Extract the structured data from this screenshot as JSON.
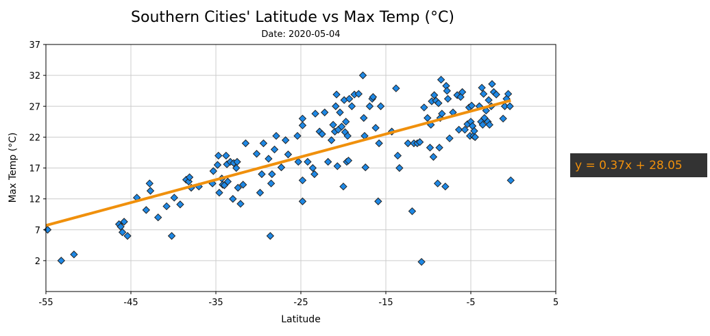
{
  "chart_data": {
    "type": "scatter",
    "title": "Southern Cities' Latitude vs Max Temp (°C)",
    "subtitle": "Date: 2020-05-04",
    "xlabel": "Latitude",
    "ylabel": "Max Temp (°C)",
    "xlim": [
      -55,
      5
    ],
    "ylim": [
      -3,
      37
    ],
    "xticks": [
      -55,
      -45,
      -35,
      -25,
      -15,
      -5,
      5
    ],
    "yticks": [
      2,
      7,
      12,
      17,
      22,
      27,
      32,
      37
    ],
    "grid": true,
    "marker": "diamond",
    "marker_color": "#1e88e5",
    "marker_edge_color": "#222222",
    "regression": {
      "slope": 0.37,
      "intercept": 28.05,
      "x_range": [
        -55,
        -0.3
      ],
      "color": "#f0900c",
      "label": "y = 0.37x + 28.05",
      "label_text_color": "#f0900c",
      "label_background": "#333333"
    },
    "points": [
      [
        -54.8,
        7.0
      ],
      [
        -53.2,
        2.0
      ],
      [
        -51.7,
        3.0
      ],
      [
        -46.4,
        7.9
      ],
      [
        -46.2,
        7.5
      ],
      [
        -46.0,
        6.6
      ],
      [
        -45.8,
        8.3
      ],
      [
        -45.4,
        6.0
      ],
      [
        -44.3,
        12.2
      ],
      [
        -43.2,
        10.2
      ],
      [
        -42.8,
        14.5
      ],
      [
        -42.7,
        13.3
      ],
      [
        -41.8,
        9.0
      ],
      [
        -40.8,
        10.8
      ],
      [
        -40.2,
        6.0
      ],
      [
        -39.9,
        12.2
      ],
      [
        -39.2,
        11.1
      ],
      [
        -38.5,
        15.1
      ],
      [
        -38.2,
        14.8
      ],
      [
        -38.1,
        15.5
      ],
      [
        -37.9,
        13.8
      ],
      [
        -37.0,
        14.0
      ],
      [
        -35.4,
        14.5
      ],
      [
        -35.3,
        16.5
      ],
      [
        -34.8,
        17.5
      ],
      [
        -34.7,
        19.0
      ],
      [
        -34.6,
        13.0
      ],
      [
        -34.3,
        15.3
      ],
      [
        -34.2,
        14.3
      ],
      [
        -34.0,
        14.2
      ],
      [
        -33.8,
        19.0
      ],
      [
        -33.7,
        17.6
      ],
      [
        -33.6,
        14.8
      ],
      [
        -33.3,
        18.0
      ],
      [
        -33.0,
        12.0
      ],
      [
        -32.9,
        17.8
      ],
      [
        -32.6,
        17.0
      ],
      [
        -32.5,
        18.0
      ],
      [
        -32.4,
        13.8
      ],
      [
        -32.1,
        11.2
      ],
      [
        -31.8,
        14.3
      ],
      [
        -31.5,
        21.0
      ],
      [
        -30.2,
        19.3
      ],
      [
        -29.8,
        13.0
      ],
      [
        -29.6,
        16.0
      ],
      [
        -29.4,
        21.0
      ],
      [
        -28.8,
        18.5
      ],
      [
        -28.6,
        6.0
      ],
      [
        -28.5,
        14.5
      ],
      [
        -28.4,
        16.0
      ],
      [
        -28.1,
        20.0
      ],
      [
        -27.9,
        22.2
      ],
      [
        -27.3,
        17.1
      ],
      [
        -26.8,
        21.5
      ],
      [
        -26.5,
        19.2
      ],
      [
        -25.4,
        22.2
      ],
      [
        -25.3,
        18.0
      ],
      [
        -24.8,
        23.9
      ],
      [
        -24.8,
        25.0
      ],
      [
        -24.8,
        15.0
      ],
      [
        -24.8,
        11.6
      ],
      [
        -24.2,
        18.0
      ],
      [
        -23.6,
        17.0
      ],
      [
        -23.4,
        16.0
      ],
      [
        -23.3,
        25.8
      ],
      [
        -22.8,
        22.9
      ],
      [
        -22.5,
        22.5
      ],
      [
        -22.2,
        26.0
      ],
      [
        -21.8,
        18.0
      ],
      [
        -21.4,
        21.5
      ],
      [
        -21.2,
        24.0
      ],
      [
        -21.0,
        22.9
      ],
      [
        -20.9,
        27.0
      ],
      [
        -20.8,
        28.9
      ],
      [
        -20.7,
        17.3
      ],
      [
        -20.6,
        23.2
      ],
      [
        -20.4,
        26.0
      ],
      [
        -20.2,
        23.7
      ],
      [
        -20.0,
        14.0
      ],
      [
        -19.9,
        28.0
      ],
      [
        -19.8,
        22.8
      ],
      [
        -19.7,
        24.5
      ],
      [
        -19.6,
        18.0
      ],
      [
        -19.5,
        22.2
      ],
      [
        -19.4,
        18.2
      ],
      [
        -19.3,
        28.2
      ],
      [
        -19.0,
        27.0
      ],
      [
        -18.7,
        28.9
      ],
      [
        -18.2,
        29.0
      ],
      [
        -17.7,
        32.0
      ],
      [
        -17.6,
        25.1
      ],
      [
        -17.5,
        22.2
      ],
      [
        -17.4,
        17.1
      ],
      [
        -16.9,
        27.0
      ],
      [
        -16.6,
        28.2
      ],
      [
        -16.5,
        28.5
      ],
      [
        -16.2,
        23.5
      ],
      [
        -15.9,
        11.6
      ],
      [
        -15.8,
        21.0
      ],
      [
        -15.6,
        27.0
      ],
      [
        -14.3,
        22.9
      ],
      [
        -13.8,
        29.9
      ],
      [
        -13.6,
        19.0
      ],
      [
        -13.4,
        17.0
      ],
      [
        -12.4,
        21.0
      ],
      [
        -11.9,
        10.0
      ],
      [
        -11.7,
        21.0
      ],
      [
        -11.3,
        21.0
      ],
      [
        -11.0,
        21.2
      ],
      [
        -10.8,
        1.8
      ],
      [
        -10.5,
        26.8
      ],
      [
        -10.1,
        25.1
      ],
      [
        -9.8,
        20.3
      ],
      [
        -9.7,
        24.0
      ],
      [
        -9.6,
        27.8
      ],
      [
        -9.4,
        18.8
      ],
      [
        -9.3,
        28.8
      ],
      [
        -9.1,
        27.9
      ],
      [
        -8.9,
        14.5
      ],
      [
        -8.8,
        27.5
      ],
      [
        -8.7,
        20.3
      ],
      [
        -8.6,
        25.1
      ],
      [
        -8.5,
        31.3
      ],
      [
        -8.4,
        25.8
      ],
      [
        -8.0,
        14.0
      ],
      [
        -7.9,
        30.3
      ],
      [
        -7.8,
        29.5
      ],
      [
        -7.7,
        28.2
      ],
      [
        -7.5,
        21.8
      ],
      [
        -7.1,
        26.0
      ],
      [
        -6.6,
        28.8
      ],
      [
        -6.4,
        23.2
      ],
      [
        -6.2,
        28.5
      ],
      [
        -6.0,
        29.3
      ],
      [
        -5.7,
        23.2
      ],
      [
        -5.4,
        24.1
      ],
      [
        -5.2,
        26.8
      ],
      [
        -5.1,
        22.2
      ],
      [
        -5.0,
        24.5
      ],
      [
        -4.9,
        27.1
      ],
      [
        -4.8,
        23.8
      ],
      [
        -4.7,
        22.2
      ],
      [
        -4.6,
        23.0
      ],
      [
        -4.5,
        22.0
      ],
      [
        -4.0,
        27.0
      ],
      [
        -3.8,
        24.5
      ],
      [
        -3.7,
        30.0
      ],
      [
        -3.6,
        24.0
      ],
      [
        -3.5,
        29.0
      ],
      [
        -3.4,
        25.1
      ],
      [
        -3.2,
        26.3
      ],
      [
        -3.0,
        24.5
      ],
      [
        -2.9,
        28.0
      ],
      [
        -2.8,
        24.0
      ],
      [
        -2.6,
        27.0
      ],
      [
        -2.5,
        30.6
      ],
      [
        -2.3,
        29.3
      ],
      [
        -2.0,
        28.9
      ],
      [
        -1.2,
        25.0
      ],
      [
        -1.0,
        27.0
      ],
      [
        -0.8,
        28.2
      ],
      [
        -0.6,
        29.0
      ],
      [
        -0.4,
        27.0
      ],
      [
        -0.3,
        15.0
      ]
    ]
  }
}
